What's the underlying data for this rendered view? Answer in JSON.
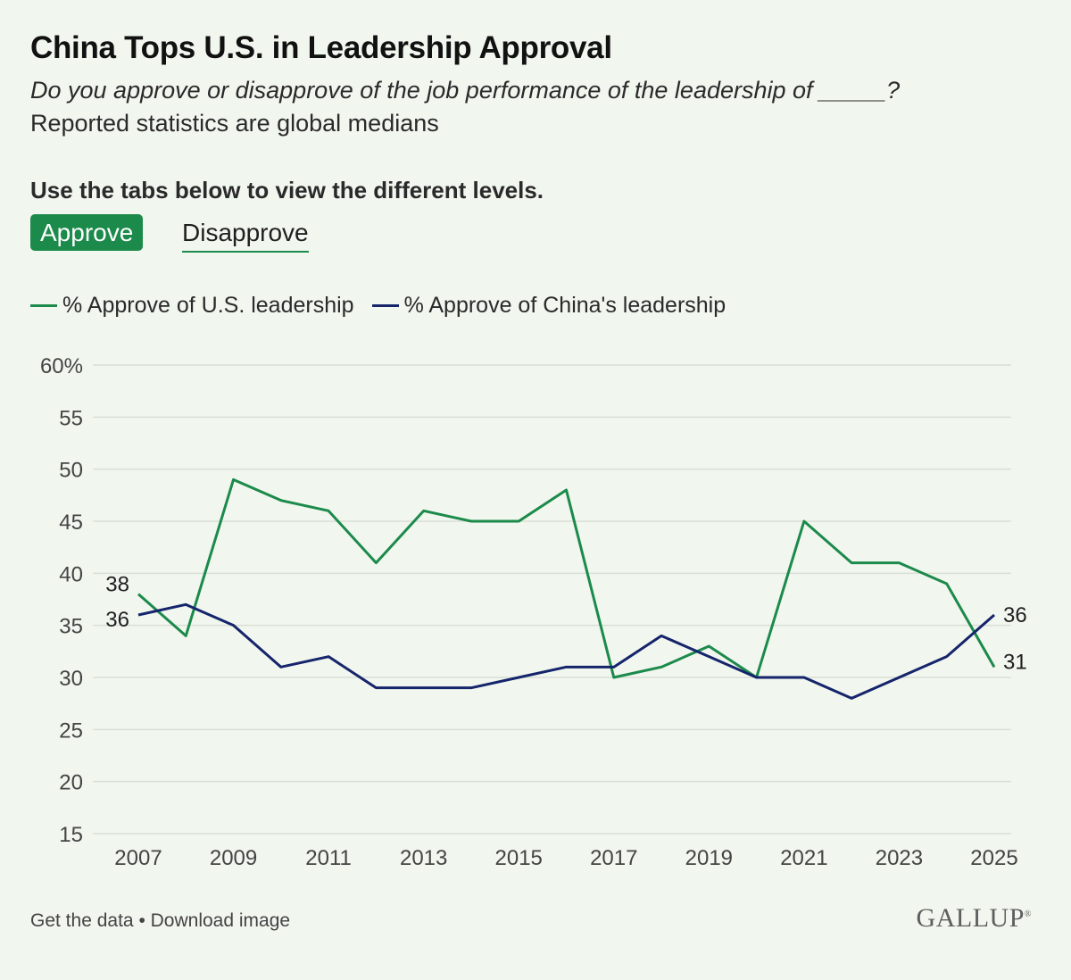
{
  "header": {
    "title": "China Tops U.S. in Leadership Approval",
    "question": "Do you approve or disapprove of the job performance of the leadership of _____?",
    "note": "Reported statistics are global medians"
  },
  "tabs": {
    "instruction": "Use the tabs below to view the different levels.",
    "items": [
      {
        "label": "Approve",
        "active": true
      },
      {
        "label": "Disapprove",
        "active": false
      }
    ]
  },
  "footer": {
    "get_data": "Get the data",
    "separator": "•",
    "download": "Download image",
    "brand": "GALLUP"
  },
  "colors": {
    "us_series": "#1b8a4a",
    "china_series": "#15246b",
    "grid": "#d9ded7",
    "tab_active_bg": "#1b8a4a"
  },
  "chart_data": {
    "type": "line",
    "title": "China Tops U.S. in Leadership Approval",
    "xlabel": "",
    "ylabel": "",
    "x": [
      2007,
      2008,
      2009,
      2010,
      2011,
      2012,
      2013,
      2014,
      2015,
      2016,
      2017,
      2018,
      2019,
      2020,
      2021,
      2022,
      2023,
      2024,
      2025
    ],
    "x_ticks": [
      "2007",
      "2009",
      "2011",
      "2013",
      "2015",
      "2017",
      "2019",
      "2021",
      "2023",
      "2025"
    ],
    "y_ticks": [
      "60%",
      "55",
      "50",
      "45",
      "40",
      "35",
      "30",
      "25",
      "20",
      "15"
    ],
    "ylim": [
      15,
      60
    ],
    "grid": true,
    "legend_position": "top-left",
    "series": [
      {
        "name": "% Approve of U.S. leadership",
        "color": "#1b8a4a",
        "values": [
          38,
          34,
          49,
          47,
          46,
          41,
          46,
          45,
          45,
          48,
          30,
          31,
          33,
          30,
          45,
          41,
          41,
          39,
          31
        ],
        "start_label": "38",
        "end_label": "31"
      },
      {
        "name": "% Approve of China's leadership",
        "color": "#15246b",
        "values": [
          36,
          37,
          35,
          31,
          32,
          29,
          29,
          29,
          30,
          31,
          31,
          34,
          32,
          30,
          30,
          28,
          30,
          32,
          36
        ],
        "start_label": "36",
        "end_label": "36"
      }
    ]
  }
}
